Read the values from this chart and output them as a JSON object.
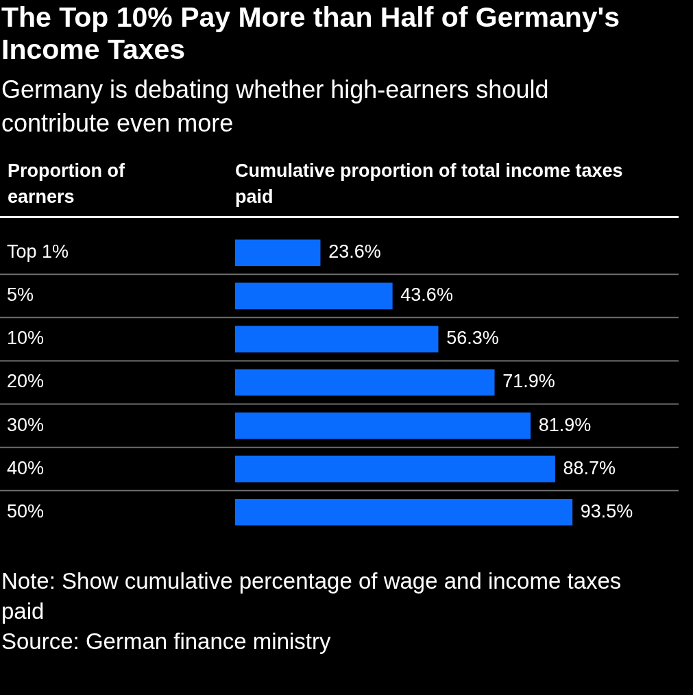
{
  "chart_data": {
    "type": "bar",
    "orientation": "horizontal",
    "title": "The Top 10% Pay More than Half of Germany's Income Taxes",
    "subtitle": "Germany is debating whether high-earners should contribute even more",
    "ylabel": "Proportion of earners",
    "xlabel": "Cumulative proportion of total income taxes paid",
    "categories": [
      "Top 1%",
      "5%",
      "10%",
      "20%",
      "30%",
      "40%",
      "50%"
    ],
    "values": [
      23.6,
      43.6,
      56.3,
      71.9,
      81.9,
      88.7,
      93.5
    ],
    "value_labels": [
      "23.6%",
      "43.6%",
      "56.3%",
      "71.9%",
      "81.9%",
      "88.7%",
      "93.5%"
    ],
    "color": "#0a6cff",
    "grid": "y",
    "legend": false,
    "annotations": [
      "Note: Show cumulative percentage of wage and income taxes paid",
      "Source: German finance ministry"
    ]
  }
}
